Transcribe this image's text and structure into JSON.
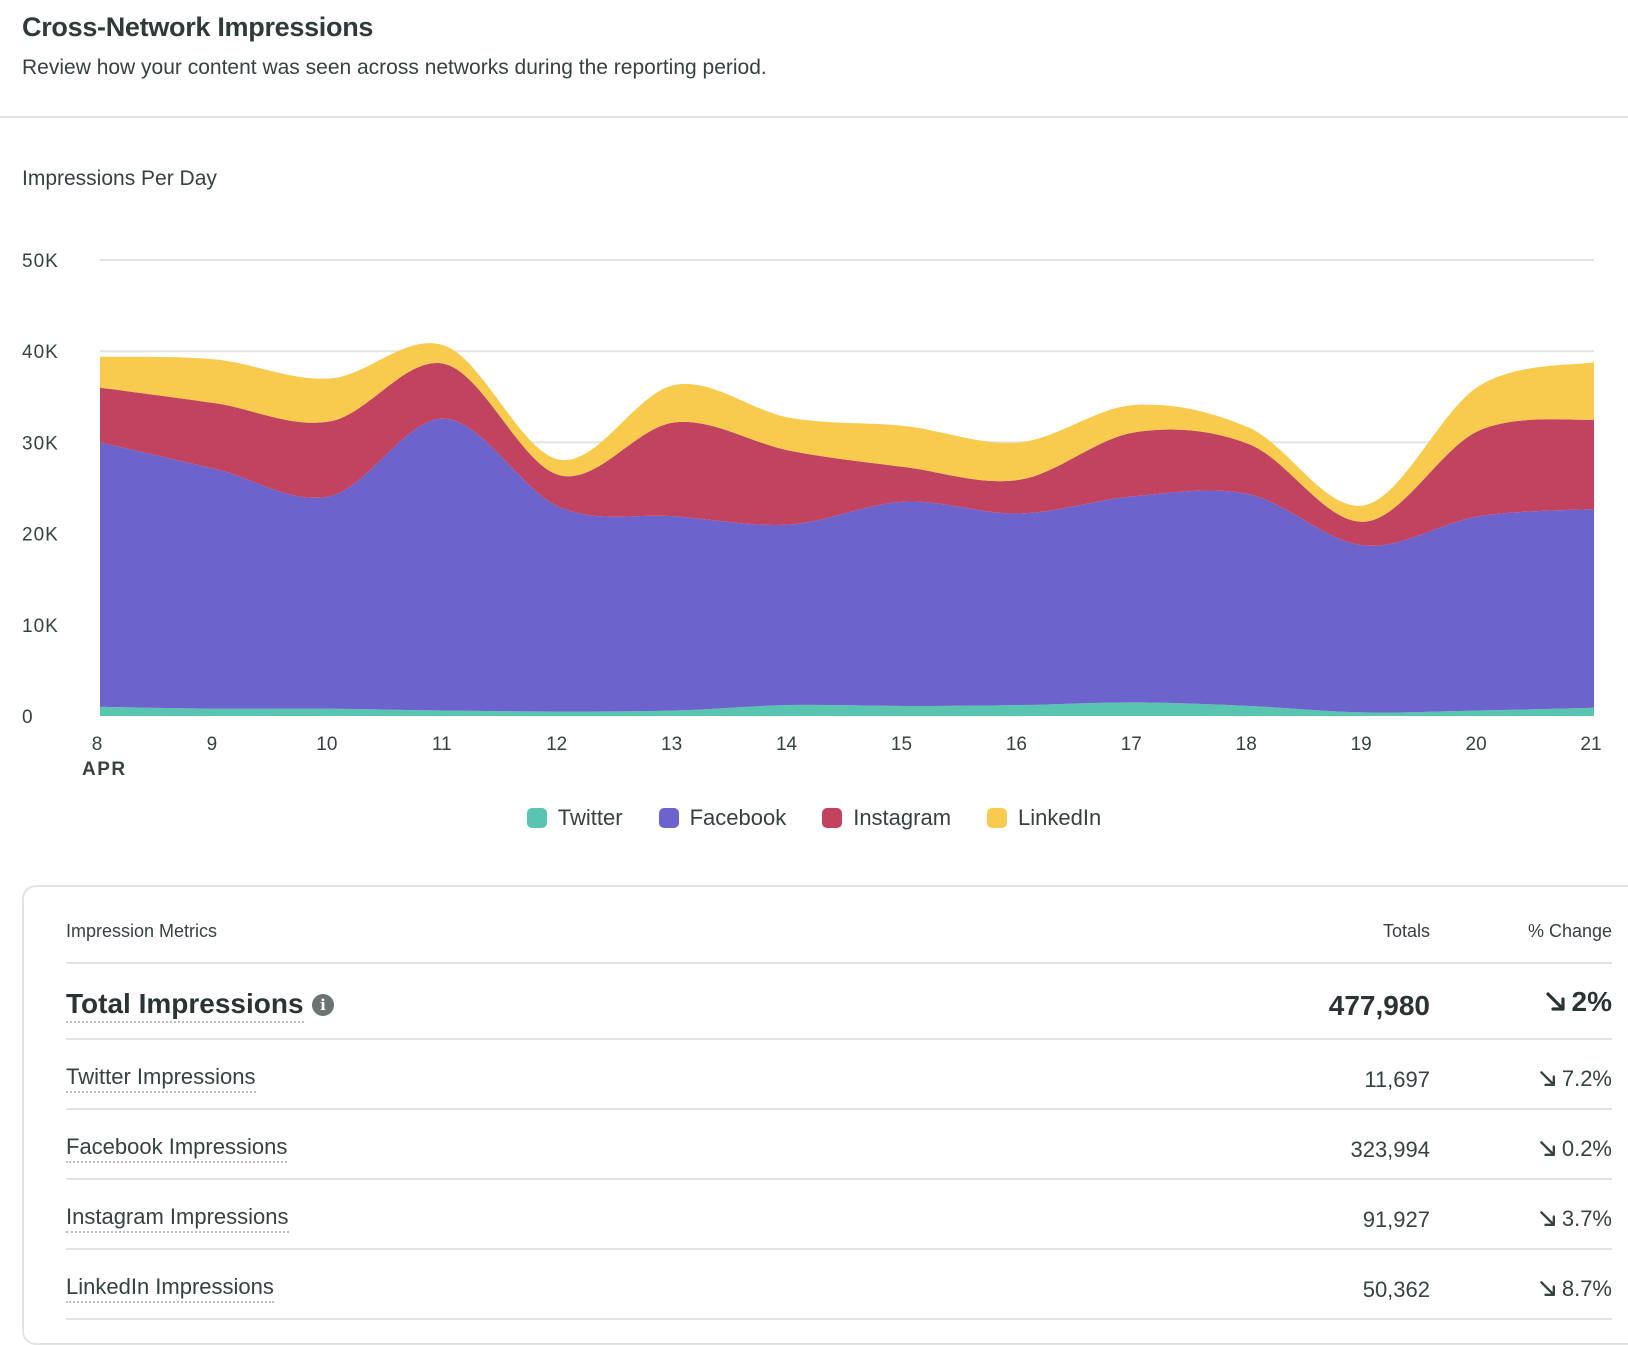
{
  "header": {
    "title": "Cross-Network Impressions",
    "subtitle": "Review how your content was seen across networks during the reporting period."
  },
  "chart_data": {
    "type": "area",
    "stacked": true,
    "title": "Impressions Per Day",
    "x": [
      "8",
      "9",
      "10",
      "11",
      "12",
      "13",
      "14",
      "15",
      "16",
      "17",
      "18",
      "19",
      "20",
      "21"
    ],
    "x_sublabel": "APR",
    "yticks": [
      "0",
      "10K",
      "20K",
      "30K",
      "40K",
      "50K"
    ],
    "ylim": [
      0,
      50000
    ],
    "grid": true,
    "legend_position": "bottom-center",
    "series": [
      {
        "name": "Twitter",
        "color": "#59c4b0",
        "values": [
          1000,
          800,
          800,
          600,
          500,
          600,
          1200,
          1100,
          1200,
          1500,
          1100,
          400,
          600,
          900
        ]
      },
      {
        "name": "Facebook",
        "color": "#6c63cc",
        "values": [
          29000,
          26300,
          23300,
          32000,
          22400,
          21300,
          19800,
          22400,
          21000,
          22600,
          23200,
          18300,
          21300,
          21800
        ]
      },
      {
        "name": "Instagram",
        "color": "#c2435f",
        "values": [
          6000,
          7200,
          8200,
          6000,
          3500,
          10300,
          8100,
          3800,
          3700,
          7000,
          5500,
          2600,
          9400,
          9800
        ]
      },
      {
        "name": "LinkedIn",
        "color": "#f8cb4e",
        "values": [
          3400,
          4800,
          4700,
          2000,
          1700,
          4100,
          3600,
          4500,
          4100,
          3000,
          1800,
          1800,
          4900,
          6300
        ]
      }
    ]
  },
  "legend": [
    {
      "label": "Twitter",
      "color": "#59c4b0"
    },
    {
      "label": "Facebook",
      "color": "#6c63cc"
    },
    {
      "label": "Instagram",
      "color": "#c2435f"
    },
    {
      "label": "LinkedIn",
      "color": "#f8cb4e"
    }
  ],
  "table": {
    "headers": {
      "metric": "Impression Metrics",
      "totals": "Totals",
      "change": "% Change"
    },
    "total_row": {
      "label": "Total Impressions",
      "total": "477,980",
      "change": "2%",
      "icon": "info-icon",
      "trend_icon": "arrow-down-right-icon"
    },
    "rows": [
      {
        "label": "Twitter Impressions",
        "total": "11,697",
        "change": "7.2%",
        "trend_icon": "arrow-down-right-icon"
      },
      {
        "label": "Facebook Impressions",
        "total": "323,994",
        "change": "0.2%",
        "trend_icon": "arrow-down-right-icon"
      },
      {
        "label": "Instagram Impressions",
        "total": "91,927",
        "change": "3.7%",
        "trend_icon": "arrow-down-right-icon"
      },
      {
        "label": "LinkedIn Impressions",
        "total": "50,362",
        "change": "8.7%",
        "trend_icon": "arrow-down-right-icon"
      }
    ]
  }
}
